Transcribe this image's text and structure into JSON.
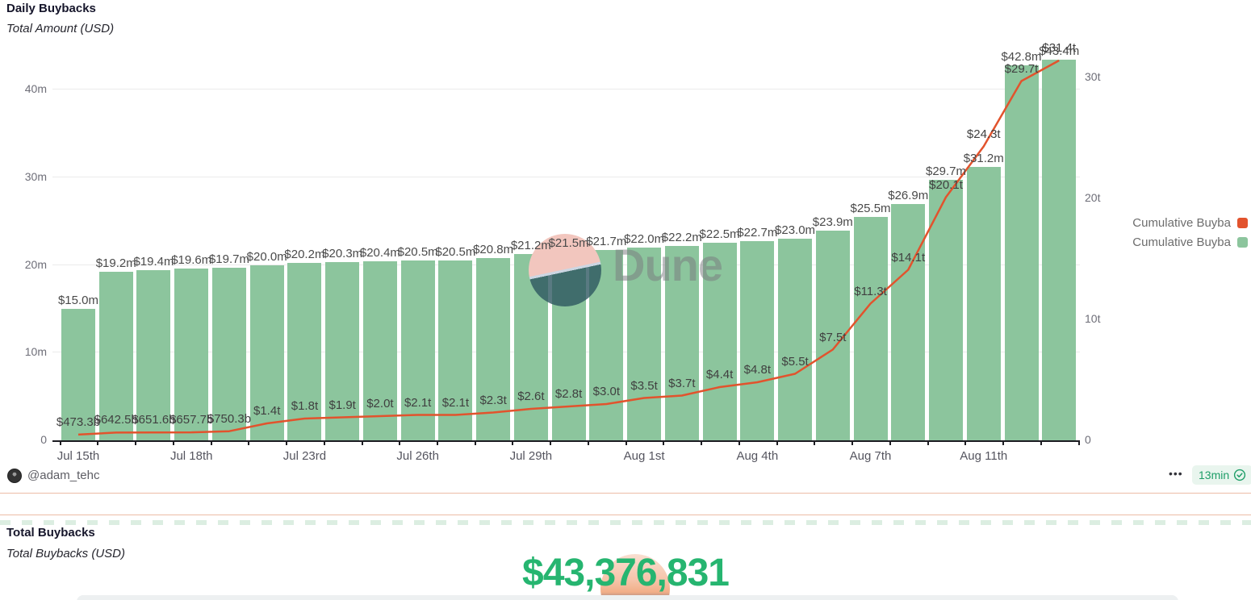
{
  "header": {
    "title": "Daily Buybacks",
    "subtitle": "Total Amount (USD)"
  },
  "watermark": {
    "brand": "Dune"
  },
  "legend": {
    "items": [
      {
        "label": "Cumulative Buyba",
        "color": "#e2532d"
      },
      {
        "label": "Cumulative Buyba",
        "color": "#8cc59d"
      }
    ]
  },
  "footer": {
    "author": "@adam_tehc",
    "menu_dots": "•••",
    "refreshed": "13min"
  },
  "counter": {
    "title": "Total Buybacks",
    "subtitle": "Total Buybacks (USD)",
    "value": "$43,376,831"
  },
  "chart_data": {
    "type": "combo",
    "title": "Daily Buybacks",
    "subtitle": "Total Amount (USD)",
    "grid": "horizontal",
    "legend_position": "right",
    "x_tick_labels": [
      "Jul 15th",
      "Jul 18th",
      "Jul 23rd",
      "Jul 26th",
      "Jul 29th",
      "Aug 1st",
      "Aug 4th",
      "Aug 7th",
      "Aug 11th"
    ],
    "x_tick_every": 3,
    "left_axis": {
      "ticks": [
        "0",
        "10m",
        "20m",
        "30m",
        "40m"
      ],
      "tick_values_millions": [
        0,
        10,
        20,
        30,
        40
      ],
      "range_millions": [
        0,
        40
      ]
    },
    "right_axis": {
      "ticks": [
        "0",
        "10t",
        "20t",
        "30t"
      ],
      "tick_values_trillions": [
        0,
        10,
        20,
        30
      ],
      "range_trillions": [
        0,
        30
      ]
    },
    "series": [
      {
        "name": "Cumulative Buyba",
        "type": "bar",
        "axis": "left",
        "color": "#8cc59d",
        "values_millions": [
          15.0,
          19.2,
          19.4,
          19.6,
          19.7,
          20.0,
          20.2,
          20.3,
          20.4,
          20.5,
          20.5,
          20.8,
          21.2,
          21.5,
          21.7,
          22.0,
          22.2,
          22.5,
          22.7,
          23.0,
          23.9,
          25.5,
          26.9,
          29.7,
          31.2,
          42.8,
          43.4
        ],
        "values_label": [
          "$15.0m",
          "$19.2m",
          "$19.4m",
          "$19.6m",
          "$19.7m",
          "$20.0m",
          "$20.2m",
          "$20.3m",
          "$20.4m",
          "$20.5m",
          "$20.5m",
          "$20.8m",
          "$21.2m",
          "$21.5m",
          "$21.7m",
          "$22.0m",
          "$22.2m",
          "$22.5m",
          "$22.7m",
          "$23.0m",
          "$23.9m",
          "$25.5m",
          "$26.9m",
          "$29.7m",
          "$31.2m",
          "$42.8m",
          "$43.4m"
        ]
      },
      {
        "name": "Cumulative Buyba",
        "type": "line",
        "axis": "right",
        "color": "#e2532d",
        "values_trillions": [
          0.4733,
          0.6425,
          0.6516,
          0.6577,
          0.7503,
          1.4,
          1.8,
          1.9,
          2.0,
          2.1,
          2.1,
          2.3,
          2.6,
          2.8,
          3.0,
          3.5,
          3.7,
          4.4,
          4.8,
          5.5,
          7.5,
          11.3,
          14.1,
          20.1,
          24.3,
          29.7,
          31.4
        ],
        "values_label": [
          "$473.3b",
          "$642.5b",
          "$651.6b",
          "$657.7b",
          "$750.3b",
          "$1.4t",
          "$1.8t",
          "$1.9t",
          "$2.0t",
          "$2.1t",
          "$2.1t",
          "$2.3t",
          "$2.6t",
          "$2.8t",
          "$3.0t",
          "$3.5t",
          "$3.7t",
          "$4.4t",
          "$4.8t",
          "$5.5t",
          "$7.5t",
          "$11.3t",
          "$14.1t",
          "$20.1t",
          "$24.3t",
          "$29.7t",
          "$31.4t"
        ]
      }
    ]
  }
}
